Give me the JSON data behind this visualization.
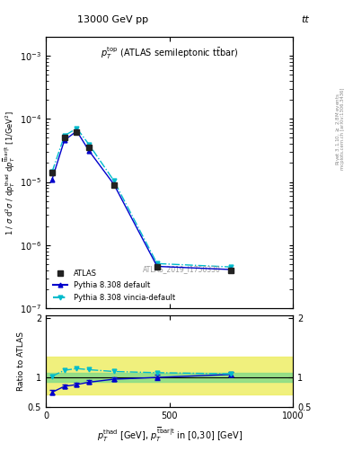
{
  "x_data": [
    25,
    75,
    125,
    175,
    275,
    450,
    750
  ],
  "atlas_y": [
    1.4e-05,
    5e-05,
    6.2e-05,
    3.5e-05,
    9e-06,
    4.5e-07,
    4e-07
  ],
  "atlas_yerr_lo": [
    1e-06,
    2.5e-06,
    2.5e-06,
    1.5e-06,
    4e-07,
    3e-08,
    3e-08
  ],
  "atlas_yerr_hi": [
    1e-06,
    2.5e-06,
    2.5e-06,
    1.5e-06,
    4e-07,
    3e-08,
    3e-08
  ],
  "pythia_default_y": [
    1.1e-05,
    4.6e-05,
    6.4e-05,
    3.1e-05,
    9.2e-06,
    4.6e-07,
    4.1e-07
  ],
  "pythia_vincia_y": [
    1.45e-05,
    5.4e-05,
    7.1e-05,
    3.9e-05,
    1.05e-05,
    5.1e-07,
    4.5e-07
  ],
  "ratio_pythia_default": [
    0.75,
    0.85,
    0.88,
    0.92,
    0.97,
    1.0,
    1.05
  ],
  "ratio_pythia_vincia": [
    1.02,
    1.12,
    1.15,
    1.13,
    1.1,
    1.08,
    1.06
  ],
  "green_band_lo": 0.93,
  "green_band_hi": 1.07,
  "yellow_band_lo": 0.72,
  "yellow_band_hi": 1.35,
  "color_atlas": "#222222",
  "color_pythia_default": "#0000cc",
  "color_pythia_vincia": "#00bbcc",
  "color_green": "#88dd88",
  "color_yellow": "#eeee66",
  "xlim": [
    0,
    1000
  ],
  "ylim_main": [
    1e-07,
    0.002
  ],
  "ylim_ratio": [
    0.5,
    2.05
  ]
}
